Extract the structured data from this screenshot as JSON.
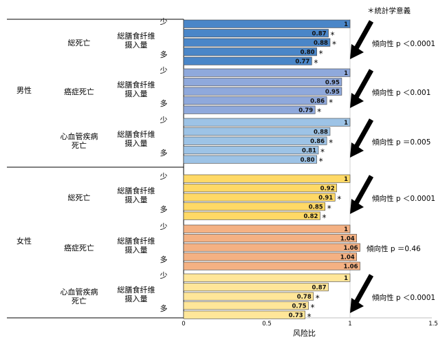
{
  "note": "＊統計学意義",
  "row_labels": {
    "low": "少",
    "high": "多",
    "variable": "総膳食纤维\n摄入量"
  },
  "sexes": [
    "男性",
    "女性"
  ],
  "panels": [
    {
      "sex": "男性",
      "outcome": "総死亡",
      "trend": "傾向性 p ＜0.0001"
    },
    {
      "sex": "男性",
      "outcome": "癌症死亡",
      "trend": "傾向性 p ＜0.001"
    },
    {
      "sex": "男性",
      "outcome": "心血管疾病\n死亡",
      "trend": "傾向性 p ＝0.005"
    },
    {
      "sex": "女性",
      "outcome": "総死亡",
      "trend": "傾向性 p ＜0.0001"
    },
    {
      "sex": "女性",
      "outcome": "癌症死亡",
      "trend": "傾向性 p ＝0.46"
    },
    {
      "sex": "女性",
      "outcome": "心血管疾病\n死亡",
      "trend": "傾向性 p ＜0.0001"
    }
  ],
  "colors": {
    "blue1": "#4a86c8",
    "blue2": "#8fa9dc",
    "blue3": "#9dc3e6",
    "yellow1": "#ffd966",
    "orange": "#f4b183",
    "yellow2": "#ffe699",
    "arrow": "#000000"
  },
  "chart_data": {
    "type": "bar",
    "orientation": "horizontal",
    "xlabel": "风险比",
    "xlim": [
      0,
      1.5
    ],
    "xticks": [
      "0",
      "0.5",
      "1",
      "1.5"
    ],
    "significance_marker": "*",
    "series": [
      {
        "values": [
          1,
          0.87,
          0.88,
          0.8,
          0.77
        ],
        "labels": [
          "1",
          "0.87",
          "0.88",
          "0.80",
          "0.77"
        ],
        "sig": [
          false,
          true,
          true,
          true,
          true
        ],
        "color": "#4a86c8"
      },
      {
        "values": [
          1,
          0.95,
          0.95,
          0.86,
          0.79
        ],
        "labels": [
          "1",
          "0.95",
          "0.95",
          "0.86",
          "0.79"
        ],
        "sig": [
          false,
          false,
          false,
          true,
          true
        ],
        "color": "#8fa9dc"
      },
      {
        "values": [
          1,
          0.88,
          0.86,
          0.81,
          0.8
        ],
        "labels": [
          "1",
          "0.88",
          "0.86",
          "0.81",
          "0.80"
        ],
        "sig": [
          false,
          false,
          true,
          true,
          true
        ],
        "color": "#9dc3e6"
      },
      {
        "values": [
          1,
          0.92,
          0.91,
          0.85,
          0.82
        ],
        "labels": [
          "1",
          "0.92",
          "0.91",
          "0.85",
          "0.82"
        ],
        "sig": [
          false,
          false,
          true,
          true,
          true
        ],
        "color": "#ffd966"
      },
      {
        "values": [
          1,
          1.04,
          1.06,
          1.04,
          1.06
        ],
        "labels": [
          "1",
          "1.04",
          "1.06",
          "1.04",
          "1.06"
        ],
        "sig": [
          false,
          false,
          false,
          false,
          false
        ],
        "color": "#f4b183"
      },
      {
        "values": [
          1,
          0.87,
          0.78,
          0.75,
          0.73
        ],
        "labels": [
          "1",
          "0.87",
          "0.78",
          "0.75",
          "0.73"
        ],
        "sig": [
          false,
          false,
          true,
          true,
          true
        ],
        "color": "#ffe699"
      }
    ],
    "arrows_present": [
      true,
      true,
      true,
      true,
      false,
      true
    ]
  }
}
